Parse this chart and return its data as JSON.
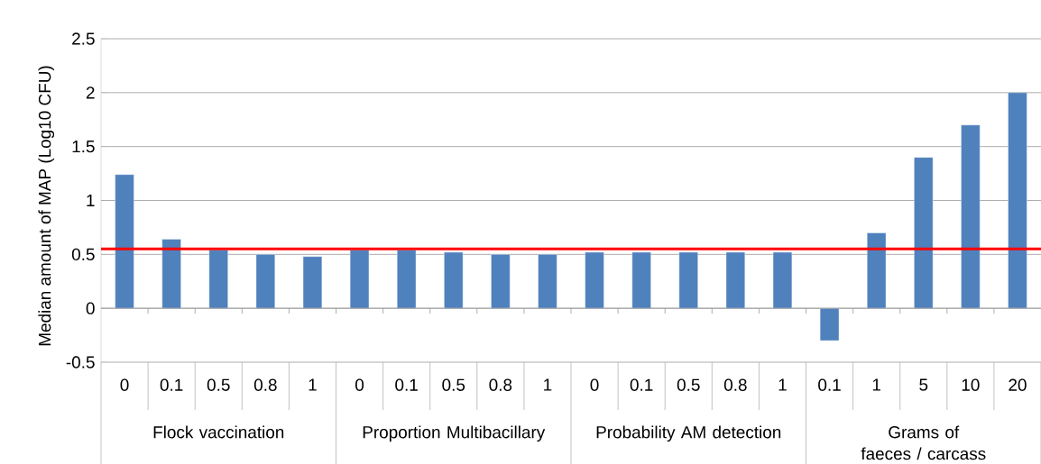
{
  "chart_data": {
    "type": "bar",
    "ylabel": "Median amount of MAP (Log10 CFU)",
    "categories": [
      "0",
      "0.1",
      "0.5",
      "0.8",
      "1",
      "0",
      "0.1",
      "0.5",
      "0.8",
      "1",
      "0",
      "0.1",
      "0.5",
      "0.8",
      "1",
      "0.1",
      "1",
      "5",
      "10",
      "20"
    ],
    "values": [
      1.24,
      0.64,
      0.54,
      0.5,
      0.48,
      0.54,
      0.54,
      0.52,
      0.5,
      0.5,
      0.52,
      0.52,
      0.52,
      0.52,
      0.52,
      -0.3,
      0.7,
      1.4,
      1.7,
      2.0
    ],
    "color": "#4f81bd",
    "ylim": [
      -0.5,
      2.5
    ],
    "yticks": [
      -0.5,
      0,
      0.5,
      1,
      1.5,
      2,
      2.5
    ],
    "grid": "y",
    "ref_lines": [
      {
        "axis": "y",
        "value": 0.55,
        "color": "#ff0000"
      }
    ],
    "annotations": [
      "Flock vaccination",
      "Proportion Multibacillary",
      "Probability AM detection",
      "Grams of faeces / carcass"
    ]
  }
}
